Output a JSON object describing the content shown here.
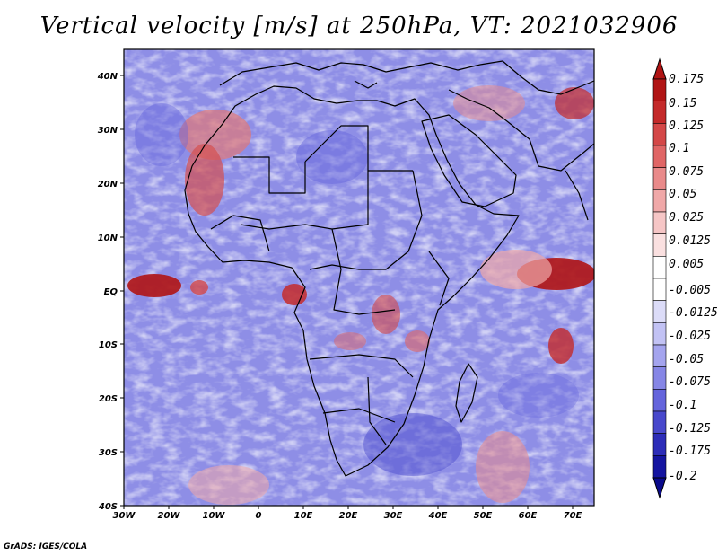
{
  "title": "Vertical velocity [m/s] at 250hPa, VT: 2021032906",
  "footer": "GrADS: IGES/COLA",
  "map": {
    "region": "Africa and surrounding oceans",
    "x_tick_labels": [
      "30W",
      "20W",
      "10W",
      "0",
      "10E",
      "20E",
      "30E",
      "40E",
      "50E",
      "60E",
      "70E"
    ],
    "y_tick_labels": [
      "40N",
      "30N",
      "20N",
      "10N",
      "EQ",
      "10S",
      "20S",
      "30S",
      "40S"
    ],
    "lon_range": [
      -30,
      75
    ],
    "lat_range": [
      -40,
      45
    ]
  },
  "colorbar": {
    "labels": [
      "0.175",
      "0.15",
      "0.125",
      "0.1",
      "0.075",
      "0.05",
      "0.025",
      "0.0125",
      "0.005",
      "-0.005",
      "-0.0125",
      "-0.025",
      "-0.05",
      "-0.075",
      "-0.1",
      "-0.125",
      "-0.175",
      "-0.2"
    ],
    "colors": [
      "#b01414",
      "#c42a2a",
      "#d44848",
      "#e06666",
      "#e98a8a",
      "#f0a8a8",
      "#f6c6c6",
      "#fae0e0",
      "#ffffff",
      "#ffffff",
      "#dcdcf8",
      "#c2c2f4",
      "#a4a4ee",
      "#8686e6",
      "#6464dc",
      "#4848cc",
      "#2c2cb8",
      "#1414a0"
    ],
    "top_arrow_color": "#b01414",
    "bottom_arrow_color": "#0a0a8c"
  }
}
